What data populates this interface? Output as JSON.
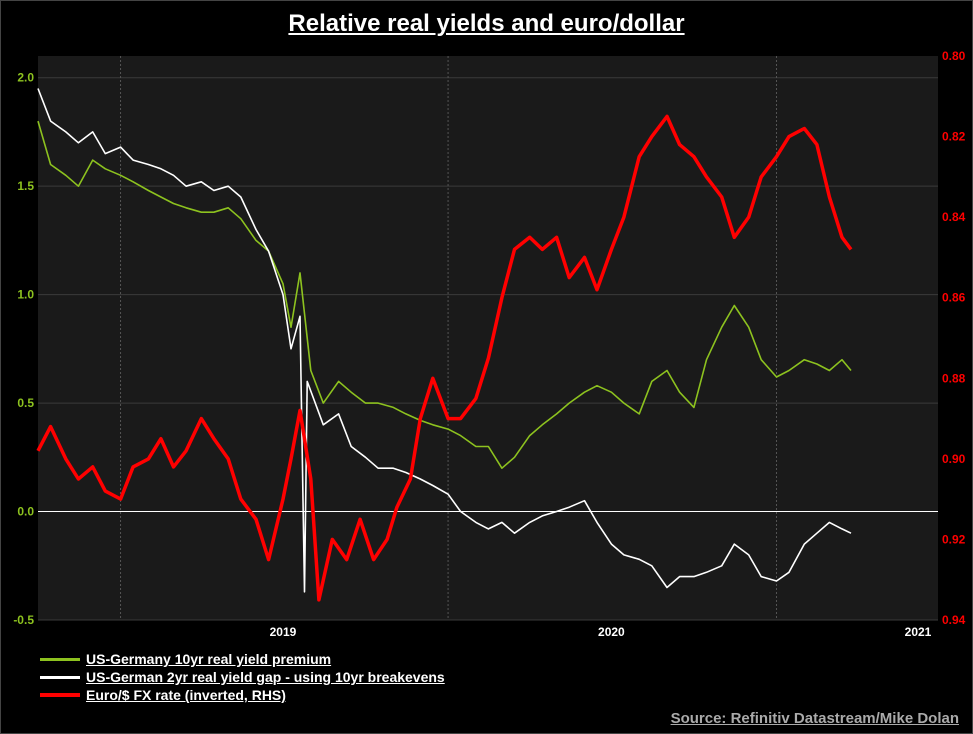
{
  "chart_data": {
    "type": "line",
    "title": "Relative real yields and euro/dollar",
    "source": "Source: Refinitiv Datastream/Mike Dolan",
    "x_tick_labels": [
      "2019",
      "2020",
      "2021"
    ],
    "x_range": [
      "2018-10-01",
      "2021-06-30"
    ],
    "y_left": {
      "ylim": [
        -0.5,
        2.1
      ],
      "ticks": [
        "2.0",
        "1.5",
        "1.0",
        "0.5",
        "0.0",
        "-0.5"
      ]
    },
    "y_right": {
      "ylim": [
        0.8,
        0.94
      ],
      "inverted_series": true,
      "ticks": [
        "0.94",
        "0.92",
        "0.90",
        "0.88",
        "0.86",
        "0.84",
        "0.82",
        "0.80"
      ]
    },
    "grid": true,
    "legend_position": "bottom-left",
    "colors": {
      "green": "#8dc21f",
      "white": "#ffffff",
      "red": "#ff0000",
      "left_axis": "#8dc21f",
      "right_axis": "#ff0000",
      "plot_bg": "#1a1a1a"
    },
    "series": [
      {
        "name": "US-Germany 10yr real yield premium",
        "axis": "left",
        "color": "#8dc21f",
        "points": [
          [
            "2018-10-01",
            1.8
          ],
          [
            "2018-10-15",
            1.6
          ],
          [
            "2018-11-01",
            1.55
          ],
          [
            "2018-11-15",
            1.5
          ],
          [
            "2018-12-01",
            1.62
          ],
          [
            "2018-12-15",
            1.58
          ],
          [
            "2019-01-01",
            1.55
          ],
          [
            "2019-01-15",
            1.52
          ],
          [
            "2019-02-01",
            1.48
          ],
          [
            "2019-02-15",
            1.45
          ],
          [
            "2019-03-01",
            1.42
          ],
          [
            "2019-03-15",
            1.4
          ],
          [
            "2019-04-01",
            1.38
          ],
          [
            "2019-04-15",
            1.38
          ],
          [
            "2019-05-01",
            1.4
          ],
          [
            "2019-05-15",
            1.35
          ],
          [
            "2019-06-01",
            1.25
          ],
          [
            "2019-06-15",
            1.2
          ],
          [
            "2019-07-01",
            1.05
          ],
          [
            "2019-07-10",
            0.85
          ],
          [
            "2019-07-20",
            1.1
          ],
          [
            "2019-08-01",
            0.65
          ],
          [
            "2019-08-15",
            0.5
          ],
          [
            "2019-09-01",
            0.6
          ],
          [
            "2019-09-15",
            0.55
          ],
          [
            "2019-10-01",
            0.5
          ],
          [
            "2019-10-15",
            0.5
          ],
          [
            "2019-11-01",
            0.48
          ],
          [
            "2019-11-15",
            0.45
          ],
          [
            "2019-12-01",
            0.42
          ],
          [
            "2019-12-15",
            0.4
          ],
          [
            "2020-01-01",
            0.38
          ],
          [
            "2020-01-15",
            0.35
          ],
          [
            "2020-02-01",
            0.3
          ],
          [
            "2020-02-15",
            0.3
          ],
          [
            "2020-03-01",
            0.2
          ],
          [
            "2020-03-15",
            0.25
          ],
          [
            "2020-04-01",
            0.35
          ],
          [
            "2020-04-15",
            0.4
          ],
          [
            "2020-05-01",
            0.45
          ],
          [
            "2020-05-15",
            0.5
          ],
          [
            "2020-06-01",
            0.55
          ],
          [
            "2020-06-15",
            0.58
          ],
          [
            "2020-07-01",
            0.55
          ],
          [
            "2020-07-15",
            0.5
          ],
          [
            "2020-08-01",
            0.45
          ],
          [
            "2020-08-15",
            0.6
          ],
          [
            "2020-09-01",
            0.65
          ],
          [
            "2020-09-15",
            0.55
          ],
          [
            "2020-10-01",
            0.48
          ],
          [
            "2020-10-15",
            0.7
          ],
          [
            "2020-11-01",
            0.85
          ],
          [
            "2020-11-15",
            0.95
          ],
          [
            "2020-12-01",
            0.85
          ],
          [
            "2020-12-15",
            0.7
          ],
          [
            "2021-01-01",
            0.62
          ],
          [
            "2021-01-15",
            0.65
          ],
          [
            "2021-02-01",
            0.7
          ],
          [
            "2021-02-15",
            0.68
          ],
          [
            "2021-03-01",
            0.65
          ],
          [
            "2021-03-15",
            0.7
          ],
          [
            "2021-03-25",
            0.65
          ]
        ]
      },
      {
        "name": "US-German 2yr real yield gap - using 10yr breakevens",
        "axis": "left",
        "color": "#ffffff",
        "points": [
          [
            "2018-10-01",
            1.95
          ],
          [
            "2018-10-15",
            1.8
          ],
          [
            "2018-11-01",
            1.75
          ],
          [
            "2018-11-15",
            1.7
          ],
          [
            "2018-12-01",
            1.75
          ],
          [
            "2018-12-15",
            1.65
          ],
          [
            "2019-01-01",
            1.68
          ],
          [
            "2019-01-15",
            1.62
          ],
          [
            "2019-02-01",
            1.6
          ],
          [
            "2019-02-15",
            1.58
          ],
          [
            "2019-03-01",
            1.55
          ],
          [
            "2019-03-15",
            1.5
          ],
          [
            "2019-04-01",
            1.52
          ],
          [
            "2019-04-15",
            1.48
          ],
          [
            "2019-05-01",
            1.5
          ],
          [
            "2019-05-15",
            1.45
          ],
          [
            "2019-06-01",
            1.3
          ],
          [
            "2019-06-15",
            1.2
          ],
          [
            "2019-07-01",
            1.0
          ],
          [
            "2019-07-10",
            0.75
          ],
          [
            "2019-07-20",
            0.9
          ],
          [
            "2019-07-25",
            -0.37
          ],
          [
            "2019-07-28",
            0.6
          ],
          [
            "2019-08-15",
            0.4
          ],
          [
            "2019-09-01",
            0.45
          ],
          [
            "2019-09-15",
            0.3
          ],
          [
            "2019-10-01",
            0.25
          ],
          [
            "2019-10-15",
            0.2
          ],
          [
            "2019-11-01",
            0.2
          ],
          [
            "2019-11-15",
            0.18
          ],
          [
            "2019-12-01",
            0.15
          ],
          [
            "2019-12-15",
            0.12
          ],
          [
            "2020-01-01",
            0.08
          ],
          [
            "2020-01-15",
            0.0
          ],
          [
            "2020-02-01",
            -0.05
          ],
          [
            "2020-02-15",
            -0.08
          ],
          [
            "2020-03-01",
            -0.05
          ],
          [
            "2020-03-15",
            -0.1
          ],
          [
            "2020-04-01",
            -0.05
          ],
          [
            "2020-04-15",
            -0.02
          ],
          [
            "2020-05-01",
            0.0
          ],
          [
            "2020-05-15",
            0.02
          ],
          [
            "2020-06-01",
            0.05
          ],
          [
            "2020-06-15",
            -0.05
          ],
          [
            "2020-07-01",
            -0.15
          ],
          [
            "2020-07-15",
            -0.2
          ],
          [
            "2020-08-01",
            -0.22
          ],
          [
            "2020-08-15",
            -0.25
          ],
          [
            "2020-09-01",
            -0.35
          ],
          [
            "2020-09-15",
            -0.3
          ],
          [
            "2020-10-01",
            -0.3
          ],
          [
            "2020-10-15",
            -0.28
          ],
          [
            "2020-11-01",
            -0.25
          ],
          [
            "2020-11-15",
            -0.15
          ],
          [
            "2020-12-01",
            -0.2
          ],
          [
            "2020-12-15",
            -0.3
          ],
          [
            "2021-01-01",
            -0.32
          ],
          [
            "2021-01-15",
            -0.28
          ],
          [
            "2021-02-01",
            -0.15
          ],
          [
            "2021-02-15",
            -0.1
          ],
          [
            "2021-03-01",
            -0.05
          ],
          [
            "2021-03-15",
            -0.08
          ],
          [
            "2021-03-25",
            -0.1
          ]
        ]
      },
      {
        "name": "Euro/$ FX rate (inverted, RHS)",
        "axis": "right",
        "color": "#ff0000",
        "points": [
          [
            "2018-10-01",
            0.898
          ],
          [
            "2018-10-15",
            0.892
          ],
          [
            "2018-11-01",
            0.9
          ],
          [
            "2018-11-15",
            0.905
          ],
          [
            "2018-12-01",
            0.902
          ],
          [
            "2018-12-15",
            0.908
          ],
          [
            "2019-01-01",
            0.91
          ],
          [
            "2019-01-15",
            0.902
          ],
          [
            "2019-02-01",
            0.9
          ],
          [
            "2019-02-15",
            0.895
          ],
          [
            "2019-03-01",
            0.902
          ],
          [
            "2019-03-15",
            0.898
          ],
          [
            "2019-04-01",
            0.89
          ],
          [
            "2019-04-15",
            0.895
          ],
          [
            "2019-05-01",
            0.9
          ],
          [
            "2019-05-15",
            0.91
          ],
          [
            "2019-06-01",
            0.915
          ],
          [
            "2019-06-15",
            0.925
          ],
          [
            "2019-07-01",
            0.91
          ],
          [
            "2019-07-10",
            0.9
          ],
          [
            "2019-07-20",
            0.888
          ],
          [
            "2019-08-01",
            0.905
          ],
          [
            "2019-08-10",
            0.935
          ],
          [
            "2019-08-25",
            0.92
          ],
          [
            "2019-09-10",
            0.925
          ],
          [
            "2019-09-25",
            0.915
          ],
          [
            "2019-10-10",
            0.925
          ],
          [
            "2019-10-25",
            0.92
          ],
          [
            "2019-11-05",
            0.912
          ],
          [
            "2019-11-20",
            0.905
          ],
          [
            "2019-12-01",
            0.89
          ],
          [
            "2019-12-15",
            0.88
          ],
          [
            "2020-01-01",
            0.89
          ],
          [
            "2020-01-15",
            0.89
          ],
          [
            "2020-02-01",
            0.885
          ],
          [
            "2020-02-15",
            0.875
          ],
          [
            "2020-03-01",
            0.86
          ],
          [
            "2020-03-15",
            0.848
          ],
          [
            "2020-04-01",
            0.845
          ],
          [
            "2020-04-15",
            0.848
          ],
          [
            "2020-05-01",
            0.845
          ],
          [
            "2020-05-15",
            0.855
          ],
          [
            "2020-06-01",
            0.85
          ],
          [
            "2020-06-15",
            0.858
          ],
          [
            "2020-07-01",
            0.848
          ],
          [
            "2020-07-15",
            0.84
          ],
          [
            "2020-08-01",
            0.825
          ],
          [
            "2020-08-15",
            0.82
          ],
          [
            "2020-09-01",
            0.815
          ],
          [
            "2020-09-15",
            0.822
          ],
          [
            "2020-10-01",
            0.825
          ],
          [
            "2020-10-15",
            0.83
          ],
          [
            "2020-11-01",
            0.835
          ],
          [
            "2020-11-15",
            0.845
          ],
          [
            "2020-12-01",
            0.84
          ],
          [
            "2020-12-15",
            0.83
          ],
          [
            "2021-01-01",
            0.825
          ],
          [
            "2021-01-15",
            0.82
          ],
          [
            "2021-02-01",
            0.818
          ],
          [
            "2021-02-15",
            0.822
          ],
          [
            "2021-03-01",
            0.835
          ],
          [
            "2021-03-15",
            0.845
          ],
          [
            "2021-03-25",
            0.848
          ]
        ]
      }
    ]
  }
}
